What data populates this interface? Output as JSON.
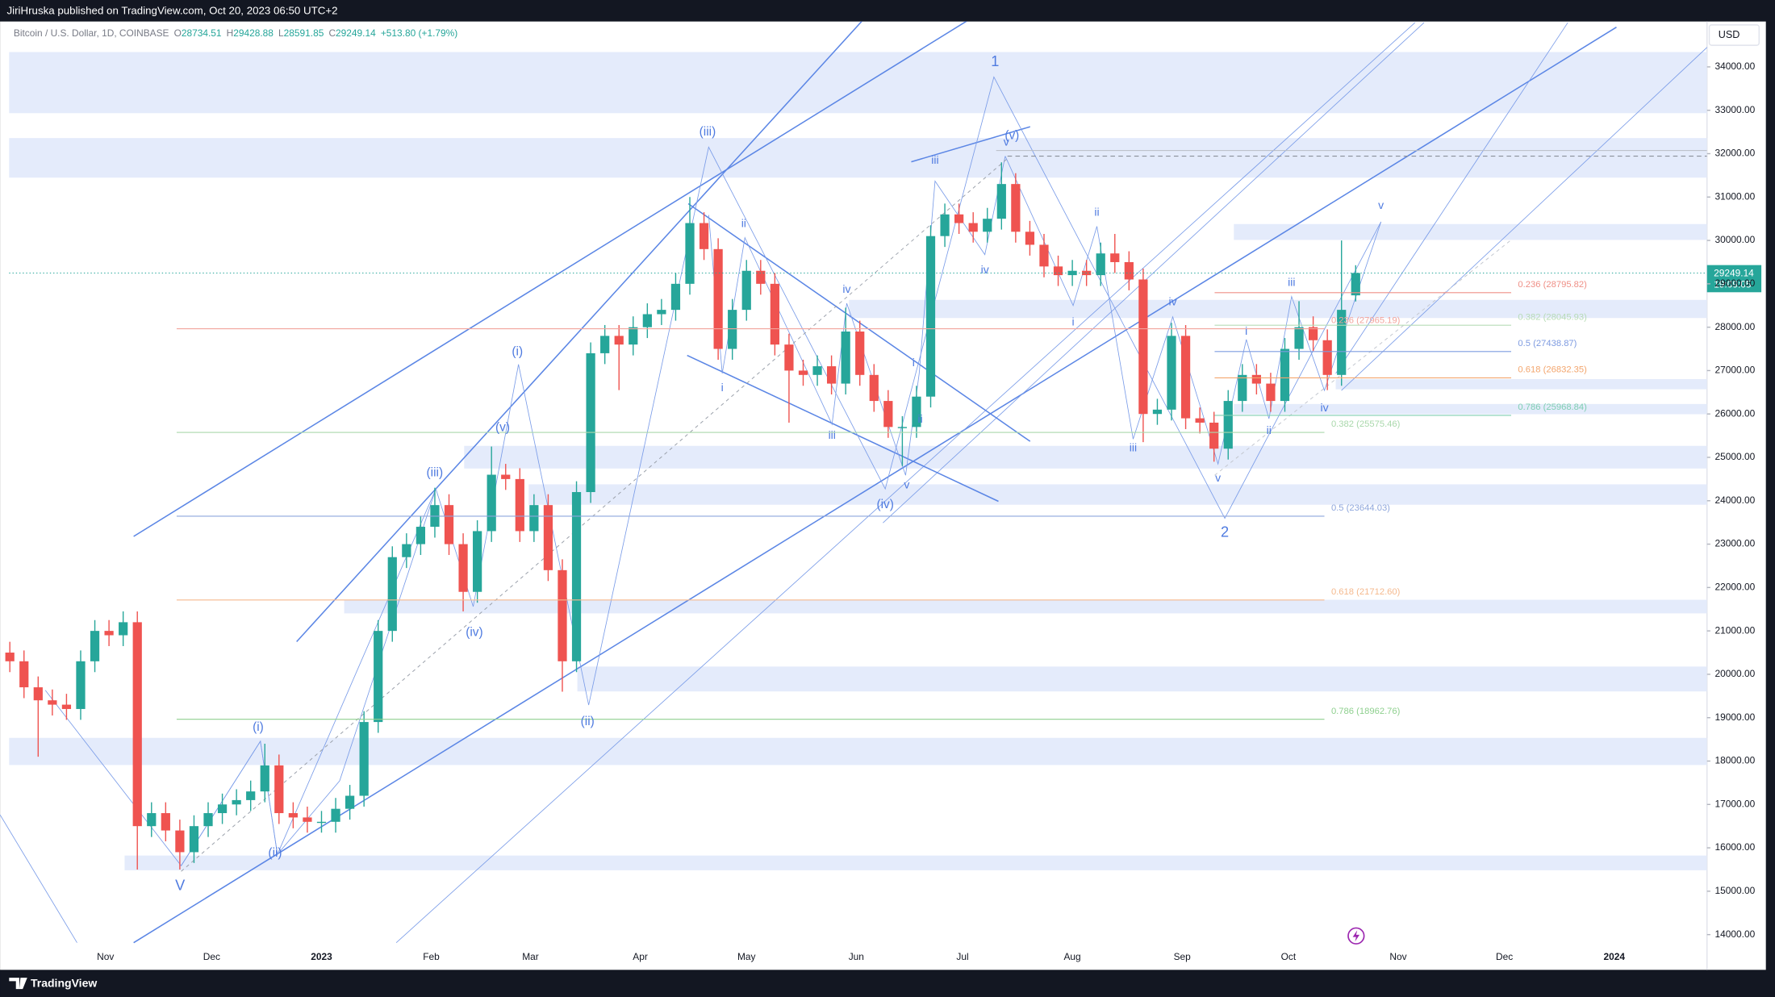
{
  "header": {
    "author_line": "JiriHruska published on TradingView.com, Oct 20, 2023 06:50 UTC+2",
    "symbol": "Bitcoin / U.S. Dollar, 1D, COINBASE",
    "ohlc_keys": [
      "O",
      "H",
      "L",
      "C"
    ],
    "change": "+513.80 (+1.79%)",
    "currency": "USD",
    "countdown": "19:09:05",
    "brand": "TradingView"
  },
  "chart_data": {
    "type": "candlestick",
    "x": [
      -27,
      -23,
      -19,
      -15,
      -11,
      -7,
      -3,
      1,
      5,
      9,
      13,
      17,
      21,
      25,
      29,
      33,
      37,
      41,
      45,
      49,
      53,
      57,
      61,
      65,
      69,
      73,
      77,
      81,
      85,
      89,
      93,
      97,
      101,
      105,
      109,
      113,
      117,
      121,
      125,
      129,
      133,
      137,
      141,
      145,
      149,
      153,
      157,
      161,
      165,
      169,
      173,
      177,
      181,
      185,
      189,
      193,
      197,
      201,
      205,
      209,
      213,
      217,
      221,
      225,
      229,
      233,
      237,
      241,
      245,
      249,
      253,
      257,
      261,
      265,
      269,
      273,
      277,
      281,
      285,
      289,
      293,
      297,
      301,
      305,
      309,
      313,
      317,
      321,
      325,
      329,
      333,
      337,
      341,
      345,
      349,
      353
    ],
    "open": [
      20500,
      20300,
      19700,
      19400,
      19300,
      19200,
      20300,
      21000,
      20900,
      21200,
      16500,
      16800,
      16400,
      15900,
      16500,
      16800,
      17000,
      17100,
      17300,
      17900,
      16800,
      16700,
      16600,
      16600,
      16900,
      17200,
      18900,
      21000,
      22700,
      23000,
      23400,
      23900,
      23000,
      21900,
      23300,
      24600,
      24500,
      23300,
      23900,
      22400,
      20300,
      24200,
      27400,
      27800,
      27600,
      28000,
      28300,
      28400,
      29000,
      30400,
      29800,
      27500,
      28400,
      29300,
      29000,
      27600,
      27000,
      26900,
      27100,
      26700,
      27900,
      26900,
      26300,
      25700,
      25700,
      26400,
      30100,
      30600,
      30400,
      30200,
      30500,
      31300,
      30200,
      29900,
      29400,
      29200,
      29300,
      29200,
      29700,
      29500,
      29100,
      26000,
      26100,
      27800,
      25900,
      25800,
      25200,
      26300,
      26900,
      26700,
      26300,
      27500,
      28000,
      27700,
      26900,
      28734.51
    ],
    "high": [
      20750,
      20550,
      19950,
      19650,
      19550,
      20550,
      21250,
      21250,
      21450,
      21450,
      17050,
      17050,
      16650,
      16750,
      17050,
      17250,
      17350,
      17550,
      18400,
      18150,
      17050,
      16950,
      16850,
      17150,
      17450,
      19150,
      21250,
      22950,
      23250,
      23650,
      24300,
      24150,
      23250,
      23550,
      25250,
      24850,
      24750,
      24150,
      24150,
      22650,
      24450,
      27650,
      28050,
      28050,
      28250,
      28550,
      28650,
      29250,
      31000,
      30650,
      30050,
      28650,
      29550,
      29550,
      29250,
      27850,
      27250,
      27350,
      27350,
      28450,
      28150,
      27150,
      26550,
      25950,
      26650,
      30350,
      30850,
      30850,
      30650,
      30750,
      31800,
      31550,
      30450,
      30150,
      29650,
      29550,
      29550,
      29950,
      30150,
      29750,
      29350,
      26350,
      28100,
      28050,
      26150,
      26050,
      26550,
      27150,
      27150,
      26950,
      27750,
      28600,
      28250,
      27950,
      30000,
      29428.88
    ],
    "low": [
      20050,
      19450,
      18100,
      19050,
      18950,
      18950,
      20050,
      20650,
      20650,
      15500,
      16250,
      16150,
      15500,
      15650,
      16250,
      16550,
      16750,
      16850,
      17050,
      16550,
      16450,
      16350,
      16350,
      16350,
      16650,
      16950,
      18650,
      20750,
      22450,
      22750,
      23150,
      22750,
      21450,
      21650,
      23050,
      24250,
      23050,
      23050,
      22150,
      19600,
      20050,
      23950,
      27150,
      26550,
      27350,
      27750,
      28050,
      28150,
      28750,
      29550,
      27250,
      27250,
      28150,
      28750,
      27350,
      25800,
      26650,
      26650,
      26450,
      26450,
      26650,
      26050,
      25450,
      24800,
      25450,
      26150,
      29850,
      30150,
      29950,
      29950,
      30250,
      29950,
      29650,
      29150,
      28950,
      28950,
      28950,
      28950,
      29250,
      28850,
      25350,
      25750,
      25850,
      25650,
      25550,
      24900,
      24950,
      26050,
      26450,
      26050,
      26050,
      27250,
      27450,
      26550,
      26650,
      28591.85
    ],
    "close": [
      20300,
      19700,
      19400,
      19300,
      19200,
      20300,
      21000,
      20900,
      21200,
      16500,
      16800,
      16400,
      15900,
      16500,
      16800,
      17000,
      17100,
      17300,
      17900,
      16800,
      16700,
      16600,
      16600,
      16900,
      17200,
      18900,
      21000,
      22700,
      23000,
      23400,
      23900,
      23000,
      21900,
      23300,
      24600,
      24500,
      23300,
      23900,
      22400,
      20300,
      24200,
      27400,
      27800,
      27600,
      28000,
      28300,
      28400,
      29000,
      30400,
      29800,
      27500,
      28400,
      29300,
      29000,
      27600,
      27000,
      26900,
      27100,
      26700,
      27900,
      26900,
      26300,
      25700,
      25700,
      26400,
      30100,
      30600,
      30400,
      30200,
      30500,
      31300,
      30200,
      29900,
      29400,
      29200,
      29300,
      29200,
      29700,
      29500,
      29100,
      26000,
      26100,
      27800,
      25900,
      25800,
      25200,
      26300,
      26900,
      26700,
      26300,
      27500,
      28000,
      27700,
      26900,
      28400,
      29249.14
    ],
    "up_color": "#26a69a",
    "down_color": "#ef5350",
    "xlim": [
      -27.2,
      452.2
    ],
    "xticks": [
      {
        "value": 0,
        "label": "Nov"
      },
      {
        "value": 30,
        "label": "Dec"
      },
      {
        "value": 61,
        "label": "2023"
      },
      {
        "value": 92,
        "label": "Feb"
      },
      {
        "value": 120,
        "label": "Mar"
      },
      {
        "value": 151,
        "label": "Apr"
      },
      {
        "value": 181,
        "label": "May"
      },
      {
        "value": 212,
        "label": "Jun"
      },
      {
        "value": 242,
        "label": "Jul"
      },
      {
        "value": 273,
        "label": "Aug"
      },
      {
        "value": 304,
        "label": "Sep"
      },
      {
        "value": 334,
        "label": "Oct"
      },
      {
        "value": 365,
        "label": "Nov"
      },
      {
        "value": 395,
        "label": "Dec"
      },
      {
        "value": 426,
        "label": "2024"
      }
    ],
    "ylim": [
      13240,
      35020
    ],
    "yticks": [
      {
        "value": 14000,
        "label": "14000.00"
      },
      {
        "value": 15000,
        "label": "15000.00"
      },
      {
        "value": 16000,
        "label": "16000.00"
      },
      {
        "value": 17000,
        "label": "17000.00"
      },
      {
        "value": 18000,
        "label": "18000.00"
      },
      {
        "value": 19000,
        "label": "19000.00"
      },
      {
        "value": 20000,
        "label": "20000.00"
      },
      {
        "value": 21000,
        "label": "21000.00"
      },
      {
        "value": 22000,
        "label": "22000.00"
      },
      {
        "value": 23000,
        "label": "23000.00"
      },
      {
        "value": 24000,
        "label": "24000.00"
      },
      {
        "value": 25000,
        "label": "25000.00"
      },
      {
        "value": 26000,
        "label": "26000.00"
      },
      {
        "value": 27000,
        "label": "27000.00"
      },
      {
        "value": 28000,
        "label": "28000.00"
      },
      {
        "value": 29000,
        "label": "29000.00"
      },
      {
        "value": 30000,
        "label": "30000.00"
      },
      {
        "value": 31000,
        "label": "31000.00"
      },
      {
        "value": 32000,
        "label": "32000.00"
      },
      {
        "value": 33000,
        "label": "33000.00"
      },
      {
        "value": 34000,
        "label": "34000.00"
      }
    ],
    "fib_levels": [
      {
        "label": "0.236 (27965.19)",
        "value": 27965.19,
        "color": "#f2a49c"
      },
      {
        "label": "0.382 (25575.46)",
        "value": 25575.46,
        "color": "#a9d8ab"
      },
      {
        "label": "0.5 (23644.03)",
        "value": 23644.03,
        "color": "#8ea6dc"
      },
      {
        "label": "0.618 (21712.60)",
        "value": 21712.6,
        "color": "#f5b98e"
      },
      {
        "label": "0.786 (18962.76)",
        "value": 18962.76,
        "color": "#8fd08f"
      },
      {
        "label": "0.236 (28795.82)",
        "value": 28795.82,
        "color": "#ef8f86"
      },
      {
        "label": "0.382 (28045.93)",
        "value": 28045.93,
        "color": "#b7dbb7"
      },
      {
        "label": "0.5 (27438.87)",
        "value": 27438.87,
        "color": "#7e9be0"
      },
      {
        "label": "0.618 (26832.35)",
        "value": 26832.35,
        "color": "#f3a56d"
      },
      {
        "label": "0.786 (25968.84)",
        "value": 25968.84,
        "color": "#7fcfb2"
      }
    ],
    "wave_labels": [
      "1",
      "(iii)",
      "(v)",
      "iii",
      "v",
      "ii",
      "ii",
      "iv",
      "iv",
      "iv",
      "iii",
      "v",
      "i",
      "i",
      "i",
      "i",
      "ii",
      "ii",
      "iii",
      "iii",
      "iv",
      "v",
      "v",
      "(iv)",
      "2",
      "(i)",
      "(v)",
      "(iii)",
      "(iv)",
      "(ii)",
      "(i)",
      "(ii)",
      "V"
    ],
    "wave_color": "#4f7be0"
  }
}
